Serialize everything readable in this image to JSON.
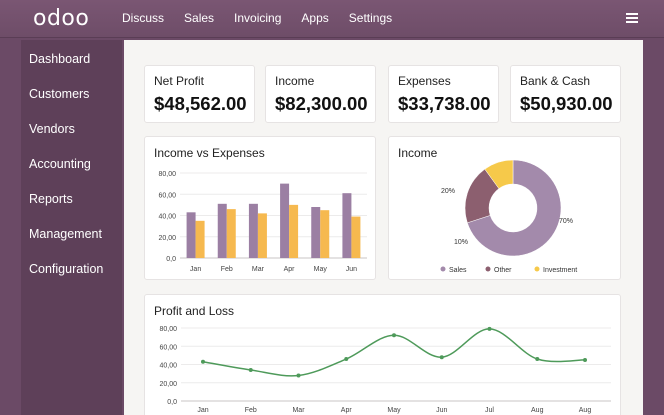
{
  "app": {
    "logo": "odoo",
    "menu": [
      "Discuss",
      "Sales",
      "Invoicing",
      "Apps",
      "Settings"
    ]
  },
  "sidebar": {
    "items": [
      {
        "label": "Dashboard"
      },
      {
        "label": "Customers"
      },
      {
        "label": "Vendors"
      },
      {
        "label": "Accounting"
      },
      {
        "label": "Reports"
      },
      {
        "label": "Management"
      },
      {
        "label": "Configuration"
      }
    ]
  },
  "kpis": [
    {
      "label": "Net Profit",
      "value": "$48,562.00"
    },
    {
      "label": "Income",
      "value": "$82,300.00"
    },
    {
      "label": "Expenses",
      "value": "$33,738.00"
    },
    {
      "label": "Bank & Cash",
      "value": "$50,930.00"
    }
  ],
  "colors": {
    "income_bar": "#9b7fa3",
    "expense_bar": "#f6b94f",
    "sales": "#a38aab",
    "other": "#8c5f6f",
    "investment": "#f6c94a",
    "line": "#4e9a5a"
  },
  "chart_data": [
    {
      "type": "bar",
      "title": "Income vs Expenses",
      "categories": [
        "Jan",
        "Feb",
        "Mar",
        "Apr",
        "May",
        "Jun"
      ],
      "yticks": [
        "0,0",
        "20,00",
        "40,00",
        "60,00",
        "80,00"
      ],
      "ylim": [
        0,
        80
      ],
      "series": [
        {
          "values": [
            43,
            51,
            51,
            70,
            48,
            61
          ]
        },
        {
          "values": [
            35,
            46,
            42,
            50,
            45,
            39
          ]
        }
      ]
    },
    {
      "type": "pie",
      "title": "Income",
      "slices": [
        {
          "name": "Sales",
          "value": 70,
          "label": "70%"
        },
        {
          "name": "Other",
          "value": 20,
          "label": "20%"
        },
        {
          "name": "Investment",
          "value": 10,
          "label": "10%"
        }
      ]
    },
    {
      "type": "line",
      "title": "Profit and Loss",
      "categories": [
        "Jan",
        "Feb",
        "Mar",
        "Apr",
        "May",
        "Jun",
        "Jul",
        "Aug",
        "Aug"
      ],
      "yticks": [
        "0,0",
        "20,00",
        "40,00",
        "60,00",
        "80,00"
      ],
      "ylim": [
        0,
        80
      ],
      "values": [
        43,
        34,
        28,
        46,
        72,
        48,
        79,
        46,
        45
      ]
    }
  ]
}
